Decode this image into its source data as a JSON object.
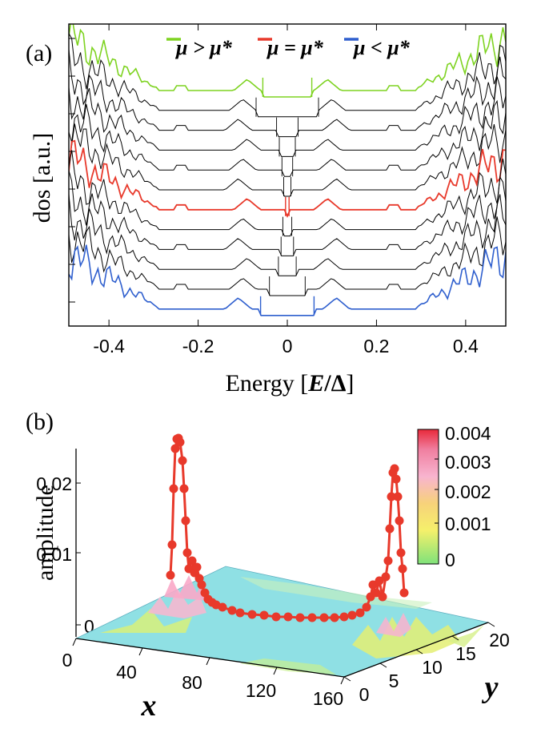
{
  "chart_data": [
    {
      "type": "line",
      "panel_label": "(a)",
      "xlabel_prefix": "Energy [",
      "xlabel_var": "E",
      "xlabel_slash": "/",
      "xlabel_delta": "Δ",
      "xlabel_suffix": "]",
      "ylabel": "dos [a.u.]",
      "xlim": [
        -0.49,
        0.49
      ],
      "x_ticks": [
        -0.4,
        -0.2,
        0,
        0.2,
        0.4
      ],
      "x_tick_labels": [
        "-0.4",
        "-0.2",
        "0",
        "0.2",
        "0.4"
      ],
      "legend": [
        {
          "name": "μ > μ*",
          "color": "#7ed321"
        },
        {
          "name": "μ = μ*",
          "color": "#e8392b"
        },
        {
          "name": "μ < μ*",
          "color": "#2f5fce"
        }
      ],
      "series": [
        {
          "color": "#7ed321",
          "gap": 0.055,
          "offset": 0
        },
        {
          "color": "#000000",
          "gap": 0.07,
          "offset": 1
        },
        {
          "color": "#000000",
          "gap": 0.024,
          "offset": 2
        },
        {
          "color": "#000000",
          "gap": 0.018,
          "offset": 3
        },
        {
          "color": "#000000",
          "gap": 0.012,
          "offset": 4
        },
        {
          "color": "#000000",
          "gap": 0.008,
          "offset": 5
        },
        {
          "color": "#e8392b",
          "gap": 0.004,
          "offset": 6
        },
        {
          "color": "#000000",
          "gap": 0.01,
          "offset": 7
        },
        {
          "color": "#000000",
          "gap": 0.014,
          "offset": 8
        },
        {
          "color": "#000000",
          "gap": 0.02,
          "offset": 9
        },
        {
          "color": "#000000",
          "gap": 0.04,
          "offset": 10
        },
        {
          "color": "#2f5fce",
          "gap": 0.06,
          "offset": 11
        }
      ]
    },
    {
      "type": "surface3d",
      "panel_label": "(b)",
      "zlabel": "amplitude",
      "xlabel": "x",
      "ylabel": "y",
      "z_tick_labels": [
        "0",
        "0.01",
        "0.02"
      ],
      "x_tick_labels": [
        "0",
        "40",
        "80",
        "120",
        "160"
      ],
      "y_tick_labels": [
        "0",
        "5",
        "10",
        "15",
        "20"
      ],
      "colorbar_labels": [
        "0.004",
        "0.003",
        "0.002",
        "0.001",
        "0"
      ],
      "colorbar_range": [
        0,
        0.004
      ],
      "edge_profile_color": "#e8392b"
    }
  ]
}
